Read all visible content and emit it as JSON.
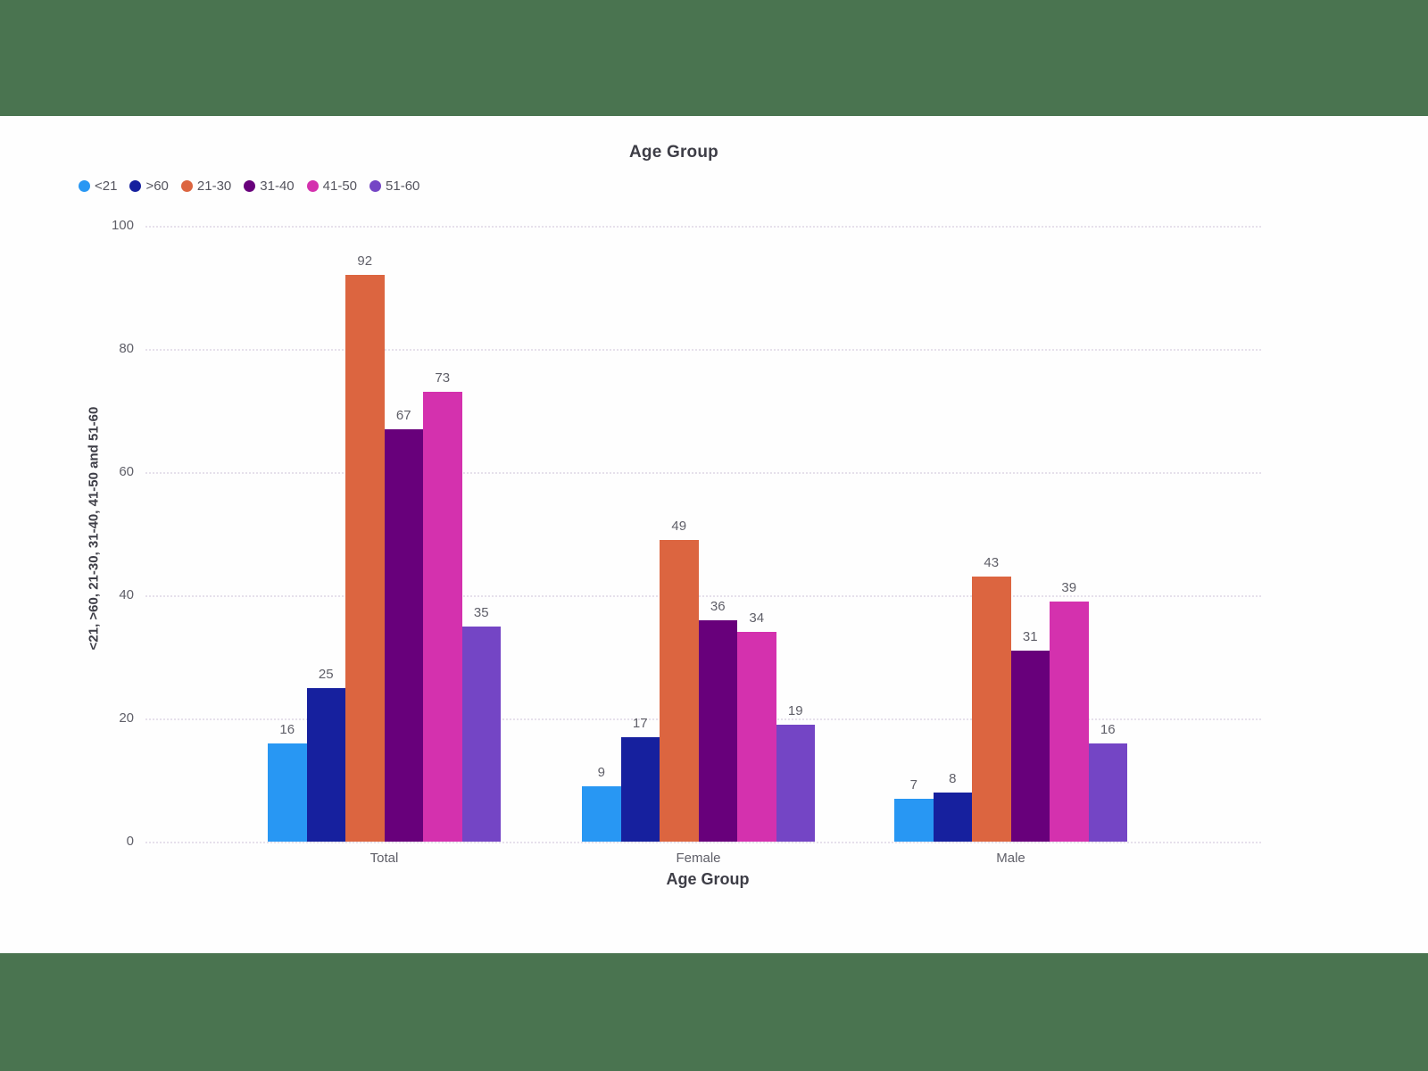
{
  "frame": {
    "matte_color": "#4a7450",
    "canvas_color": "#fefefe"
  },
  "chart": {
    "title": "Age Group",
    "x_axis_title": "Age Group",
    "y_axis_title": "<21, >60, 21-30, 31-40, 41-50 and 51-60",
    "y_ticks": [
      100,
      80,
      60,
      40,
      20,
      0
    ]
  },
  "chart_data": {
    "type": "bar",
    "title": "Age Group",
    "xlabel": "Age Group",
    "ylabel": "<21, >60, 21-30, 31-40, 41-50 and 51-60",
    "categories": [
      "Total",
      "Female",
      "Male"
    ],
    "series": [
      {
        "name": "<21",
        "color": "#2897F3",
        "values": [
          16,
          9,
          7
        ]
      },
      {
        "name": ">60",
        "color": "#16209E",
        "values": [
          25,
          17,
          8
        ]
      },
      {
        "name": "21-30",
        "color": "#DC6540",
        "values": [
          92,
          49,
          43
        ]
      },
      {
        "name": "31-40",
        "color": "#68007B",
        "values": [
          67,
          36,
          31
        ]
      },
      {
        "name": "41-50",
        "color": "#D431AE",
        "values": [
          73,
          34,
          39
        ]
      },
      {
        "name": "51-60",
        "color": "#7445C5",
        "values": [
          35,
          19,
          16
        ]
      }
    ],
    "ylim": [
      0,
      100
    ],
    "grid": true,
    "gridline_color": "#e6e0eb",
    "legend_position": "top-left",
    "value_labels": true
  }
}
